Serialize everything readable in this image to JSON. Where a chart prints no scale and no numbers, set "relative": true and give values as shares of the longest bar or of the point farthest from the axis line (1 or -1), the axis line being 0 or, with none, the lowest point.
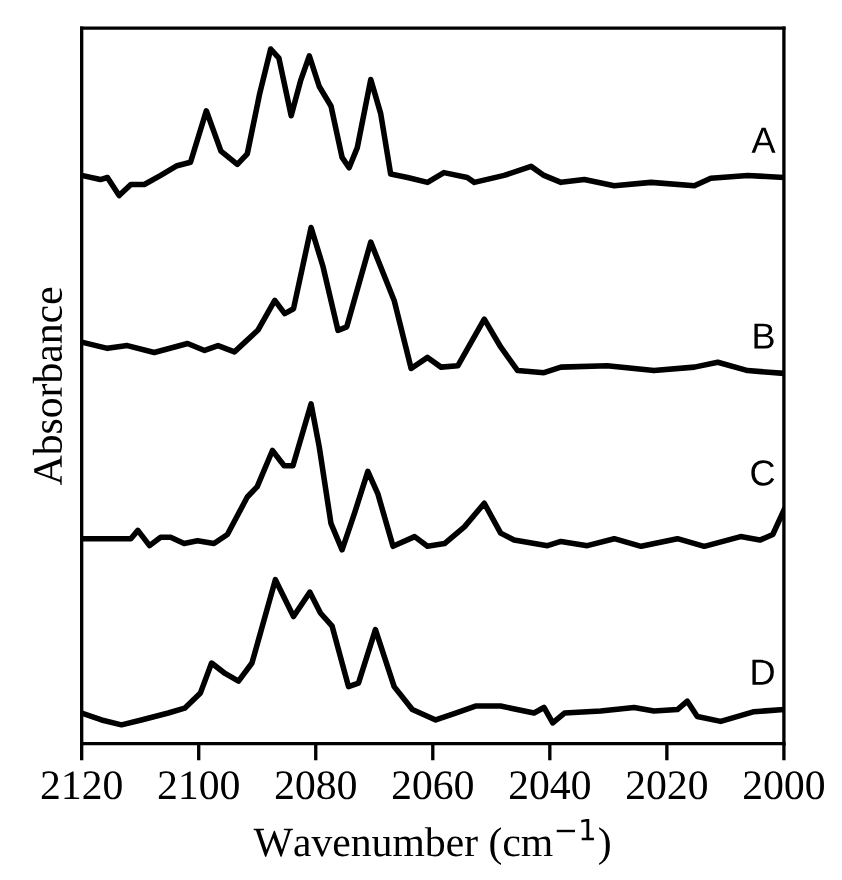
{
  "chart_data": {
    "type": "line",
    "relative": true,
    "xlabel": "Wavenumber (cm$^{−1}$)",
    "ylabel": "Absorbance",
    "xlim": [
      2120,
      2000
    ],
    "xticks": [
      2120,
      2100,
      2080,
      2060,
      2040,
      2020,
      2000
    ],
    "tick_labels": "x",
    "grid": false,
    "legend": false,
    "marker": "none",
    "line_style": "solid",
    "series": [
      {
        "name": "A",
        "color": "#000000",
        "x": [
          2120,
          2116.8,
          2115.6,
          2113.6,
          2111.6,
          2109.3,
          2106.5,
          2103.7,
          2101.4,
          2098.7,
          2096.2,
          2093.4,
          2091.7,
          2089.6,
          2087.7,
          2086.3,
          2084.2,
          2082.6,
          2081.1,
          2079.4,
          2077.4,
          2075.5,
          2074.3,
          2072.9,
          2070.6,
          2068.9,
          2067.2,
          2064.3,
          2060.9,
          2058.1,
          2054.1,
          2052.9,
          2047.8,
          2043.2,
          2041.0,
          2038.1,
          2034.1,
          2029.0,
          2022.7,
          2015.3,
          2012.5,
          2006.2,
          2000
        ],
        "values": [
          0.818,
          0.812,
          0.815,
          0.789,
          0.805,
          0.805,
          0.818,
          0.832,
          0.837,
          0.911,
          0.853,
          0.834,
          0.849,
          0.935,
          1.0,
          0.987,
          0.904,
          0.954,
          0.99,
          0.946,
          0.918,
          0.844,
          0.829,
          0.858,
          0.956,
          0.907,
          0.82,
          0.815,
          0.808,
          0.822,
          0.815,
          0.808,
          0.818,
          0.831,
          0.818,
          0.808,
          0.812,
          0.803,
          0.808,
          0.803,
          0.814,
          0.818,
          0.815
        ]
      },
      {
        "name": "B",
        "color": "#000000",
        "x": [
          2120,
          2115.6,
          2112.2,
          2107.6,
          2101.9,
          2099.0,
          2096.7,
          2093.9,
          2089.9,
          2087.0,
          2085.3,
          2083.8,
          2080.8,
          2078.8,
          2076.2,
          2074.7,
          2070.6,
          2066.6,
          2063.7,
          2060.9,
          2058.6,
          2055.7,
          2051.2,
          2048.4,
          2045.5,
          2041.0,
          2038.1,
          2030.2,
          2022.2,
          2015.3,
          2011.3,
          2006.2,
          2000
        ],
        "values": [
          0.578,
          0.569,
          0.573,
          0.563,
          0.576,
          0.566,
          0.573,
          0.564,
          0.595,
          0.638,
          0.619,
          0.626,
          0.743,
          0.688,
          0.595,
          0.6,
          0.722,
          0.638,
          0.54,
          0.556,
          0.542,
          0.544,
          0.611,
          0.571,
          0.537,
          0.534,
          0.542,
          0.544,
          0.537,
          0.542,
          0.549,
          0.537,
          0.533
        ]
      },
      {
        "name": "C",
        "color": "#000000",
        "x": [
          2120,
          2111.6,
          2110.4,
          2108.4,
          2106.5,
          2104.8,
          2102.5,
          2100.2,
          2097.4,
          2095.1,
          2091.7,
          2090.0,
          2087.4,
          2085.4,
          2083.9,
          2080.8,
          2079.4,
          2077.4,
          2075.5,
          2073.4,
          2071.1,
          2069.4,
          2066.8,
          2063.1,
          2060.9,
          2058.0,
          2054.6,
          2051.2,
          2048.4,
          2046.1,
          2040.4,
          2038.1,
          2033.6,
          2029.0,
          2024.4,
          2018.2,
          2013.6,
          2007.4,
          2004.1,
          2001.9,
          2000
        ],
        "values": [
          0.295,
          0.295,
          0.307,
          0.285,
          0.297,
          0.297,
          0.288,
          0.292,
          0.288,
          0.301,
          0.355,
          0.37,
          0.422,
          0.4,
          0.4,
          0.489,
          0.427,
          0.317,
          0.279,
          0.331,
          0.392,
          0.36,
          0.284,
          0.298,
          0.284,
          0.288,
          0.312,
          0.346,
          0.303,
          0.293,
          0.285,
          0.291,
          0.285,
          0.295,
          0.284,
          0.295,
          0.284,
          0.298,
          0.293,
          0.301,
          0.336
        ]
      },
      {
        "name": "D",
        "color": "#000000",
        "x": [
          2120,
          2116.6,
          2113.2,
          2109.8,
          2105.2,
          2102.4,
          2099.7,
          2097.8,
          2095.5,
          2093.2,
          2090.9,
          2086.9,
          2083.8,
          2081.0,
          2079.2,
          2077.2,
          2074.4,
          2072.7,
          2069.8,
          2066.6,
          2063.5,
          2059.5,
          2056.1,
          2052.7,
          2048.4,
          2042.7,
          2041.0,
          2039.5,
          2037.5,
          2031.3,
          2025.6,
          2022.2,
          2018.2,
          2016.5,
          2014.8,
          2010.8,
          2005.1,
          2000
        ],
        "values": [
          0.044,
          0.034,
          0.027,
          0.034,
          0.044,
          0.051,
          0.073,
          0.116,
          0.101,
          0.09,
          0.116,
          0.236,
          0.183,
          0.218,
          0.188,
          0.169,
          0.082,
          0.087,
          0.164,
          0.082,
          0.049,
          0.034,
          0.044,
          0.054,
          0.054,
          0.044,
          0.052,
          0.03,
          0.044,
          0.047,
          0.052,
          0.047,
          0.049,
          0.061,
          0.039,
          0.032,
          0.046,
          0.049
        ]
      }
    ]
  }
}
